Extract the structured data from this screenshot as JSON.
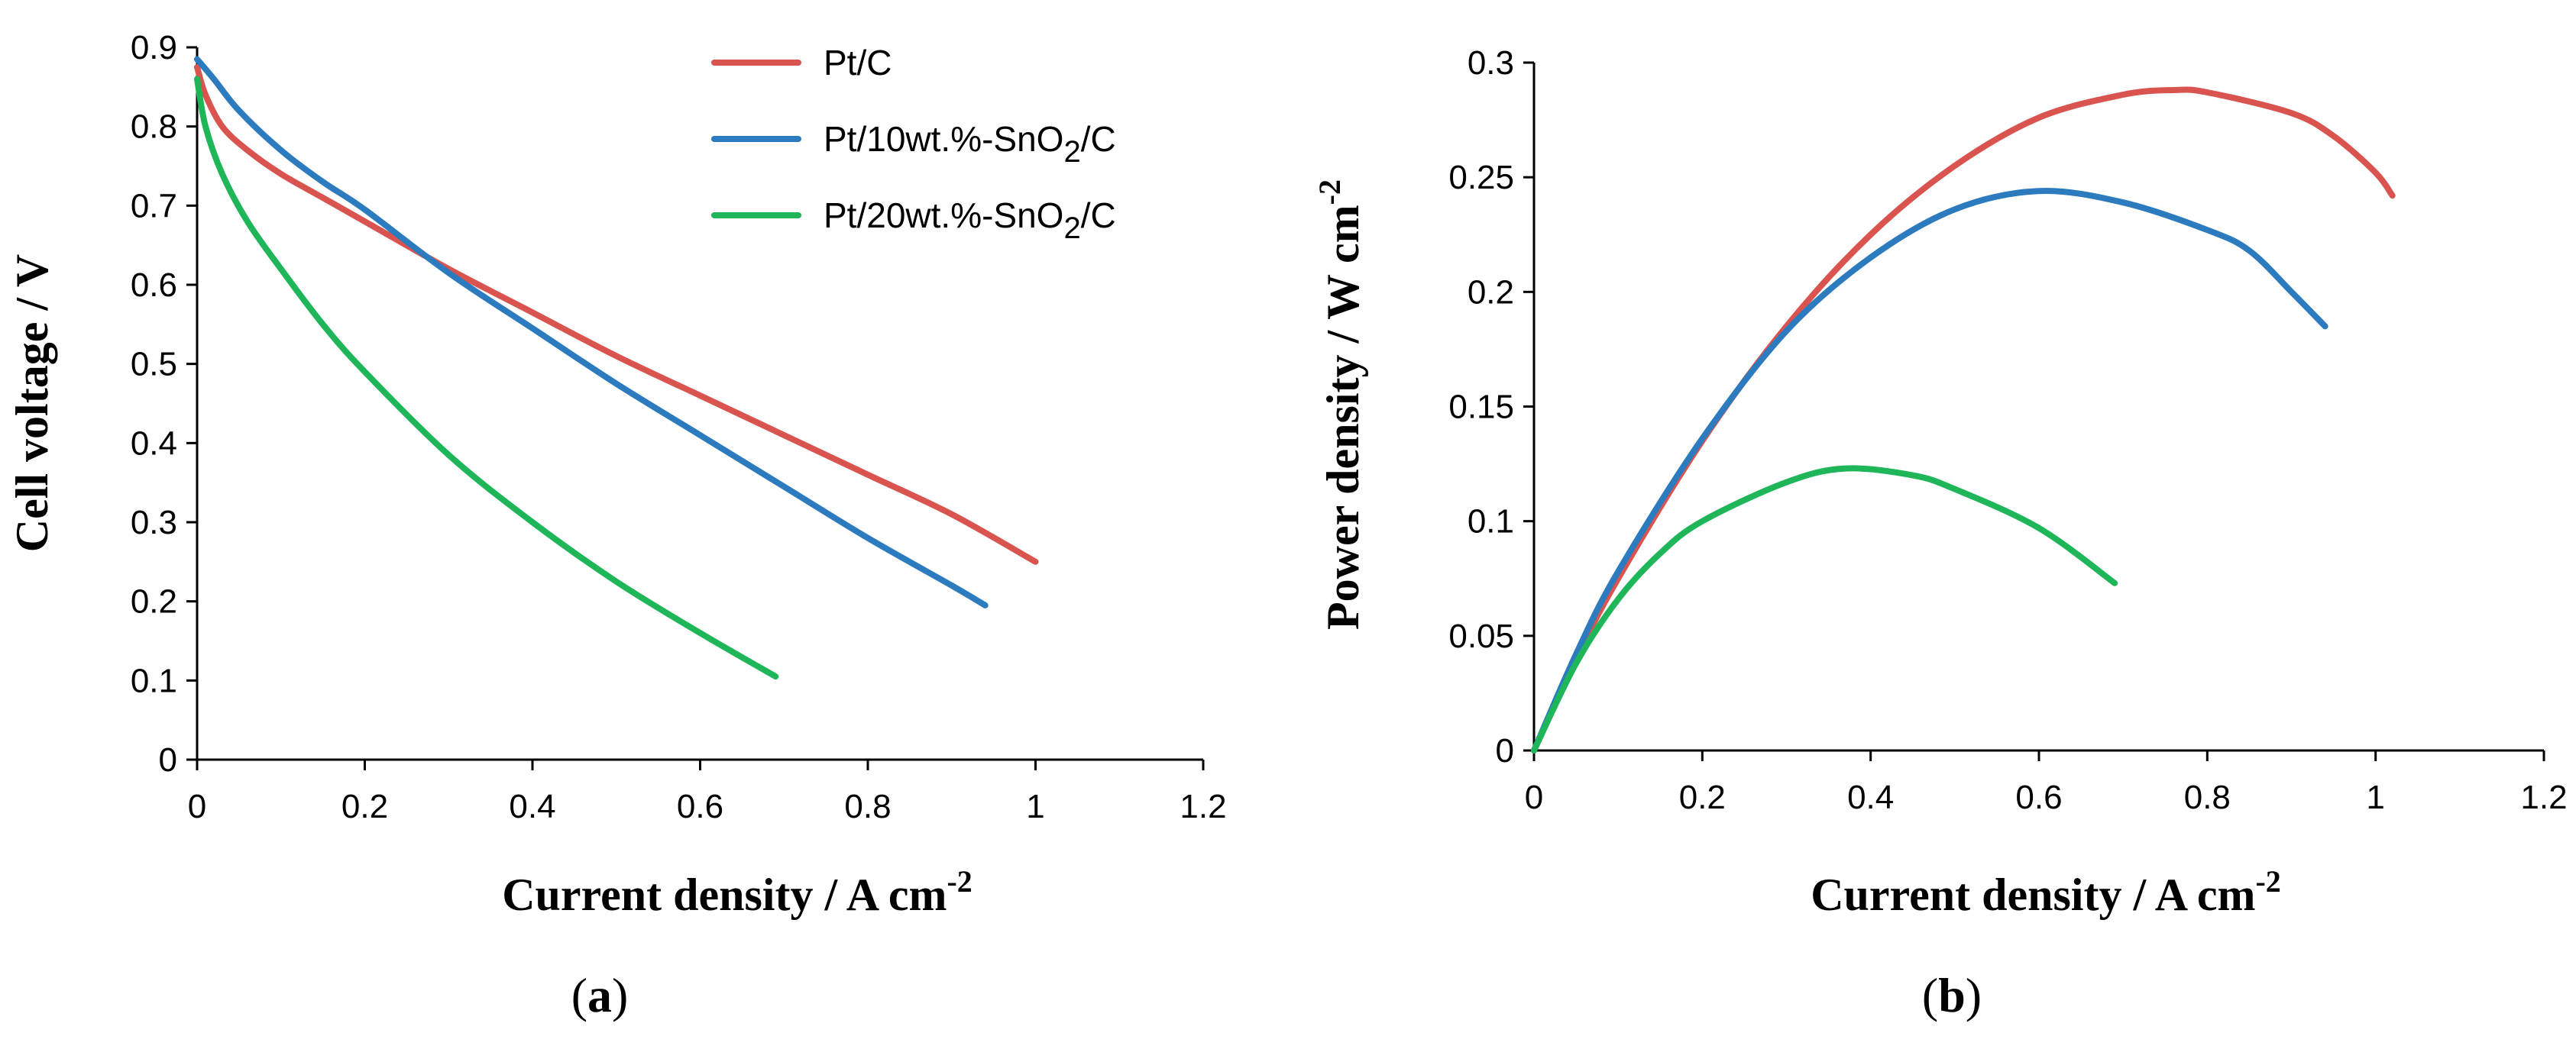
{
  "colors": {
    "red": "#d9534f",
    "blue": "#2c7bbf",
    "green": "#1fb65a",
    "axis": "#000000"
  },
  "legend": [
    {
      "base": "Pt/C",
      "sub": "",
      "tail": "",
      "color": "#d9534f"
    },
    {
      "base": "Pt/10wt.%-SnO",
      "sub": "2",
      "tail": "/C",
      "color": "#2c7bbf"
    },
    {
      "base": "Pt/20wt.%-SnO",
      "sub": "2",
      "tail": "/C",
      "color": "#1fb65a"
    }
  ],
  "chart_data": [
    {
      "id": "a",
      "type": "line",
      "panel_label": "a",
      "xlabel": {
        "base": "Current density / A cm",
        "sup": "-2"
      },
      "ylabel": {
        "base": "Cell voltage / V",
        "sup": ""
      },
      "xlim": [
        0,
        1.2
      ],
      "ylim": [
        0,
        0.9
      ],
      "xticks": [
        "0",
        "0.2",
        "0.4",
        "0.6",
        "0.8",
        "1",
        "1.2"
      ],
      "yticks": [
        "0",
        "0.1",
        "0.2",
        "0.3",
        "0.4",
        "0.5",
        "0.6",
        "0.7",
        "0.8",
        "0.9"
      ],
      "series": [
        {
          "name": "Pt/C",
          "color": "#d9534f",
          "x": [
            0,
            0.01,
            0.03,
            0.06,
            0.1,
            0.15,
            0.2,
            0.3,
            0.4,
            0.5,
            0.6,
            0.7,
            0.8,
            0.9,
            1.0
          ],
          "y": [
            0.875,
            0.84,
            0.8,
            0.77,
            0.74,
            0.71,
            0.68,
            0.62,
            0.565,
            0.51,
            0.46,
            0.41,
            0.36,
            0.31,
            0.25
          ]
        },
        {
          "name": "Pt/10wt.%-SnO2/C",
          "color": "#2c7bbf",
          "x": [
            0,
            0.02,
            0.05,
            0.1,
            0.15,
            0.2,
            0.3,
            0.4,
            0.5,
            0.6,
            0.7,
            0.8,
            0.9,
            0.94
          ],
          "y": [
            0.885,
            0.86,
            0.82,
            0.77,
            0.73,
            0.695,
            0.615,
            0.545,
            0.475,
            0.41,
            0.345,
            0.28,
            0.22,
            0.195
          ]
        },
        {
          "name": "Pt/20wt.%-SnO2/C",
          "color": "#1fb65a",
          "x": [
            0,
            0.01,
            0.03,
            0.06,
            0.1,
            0.15,
            0.2,
            0.3,
            0.4,
            0.5,
            0.6,
            0.69
          ],
          "y": [
            0.86,
            0.8,
            0.74,
            0.68,
            0.62,
            0.55,
            0.49,
            0.385,
            0.3,
            0.225,
            0.16,
            0.105
          ]
        }
      ]
    },
    {
      "id": "b",
      "type": "line",
      "panel_label": "b",
      "xlabel": {
        "base": "Current density / A cm",
        "sup": "-2"
      },
      "ylabel": {
        "base": "Power density / W cm",
        "sup": "-2"
      },
      "xlim": [
        0,
        1.2
      ],
      "ylim": [
        0,
        0.3
      ],
      "xticks": [
        "0",
        "0.2",
        "0.4",
        "0.6",
        "0.8",
        "1",
        "1.2"
      ],
      "yticks": [
        "0",
        "0.05",
        "0.1",
        "0.15",
        "0.2",
        "0.25",
        "0.3"
      ],
      "series": [
        {
          "name": "Pt/C",
          "color": "#d9534f",
          "x": [
            0,
            0.05,
            0.1,
            0.2,
            0.3,
            0.4,
            0.5,
            0.6,
            0.7,
            0.76,
            0.8,
            0.9,
            0.95,
            1.0,
            1.02
          ],
          "y": [
            0,
            0.04,
            0.075,
            0.135,
            0.185,
            0.225,
            0.255,
            0.276,
            0.286,
            0.288,
            0.287,
            0.278,
            0.268,
            0.252,
            0.242
          ]
        },
        {
          "name": "Pt/10wt.%-SnO2/C",
          "color": "#2c7bbf",
          "x": [
            0,
            0.05,
            0.1,
            0.2,
            0.3,
            0.4,
            0.5,
            0.6,
            0.7,
            0.8,
            0.85,
            0.9,
            0.94
          ],
          "y": [
            0,
            0.042,
            0.078,
            0.136,
            0.183,
            0.215,
            0.236,
            0.244,
            0.239,
            0.227,
            0.218,
            0.2,
            0.185
          ]
        },
        {
          "name": "Pt/20wt.%-SnO2/C",
          "color": "#1fb65a",
          "x": [
            0,
            0.05,
            0.1,
            0.15,
            0.2,
            0.3,
            0.37,
            0.45,
            0.5,
            0.6,
            0.69
          ],
          "y": [
            0,
            0.038,
            0.066,
            0.086,
            0.1,
            0.117,
            0.123,
            0.12,
            0.114,
            0.097,
            0.073
          ]
        }
      ]
    }
  ]
}
